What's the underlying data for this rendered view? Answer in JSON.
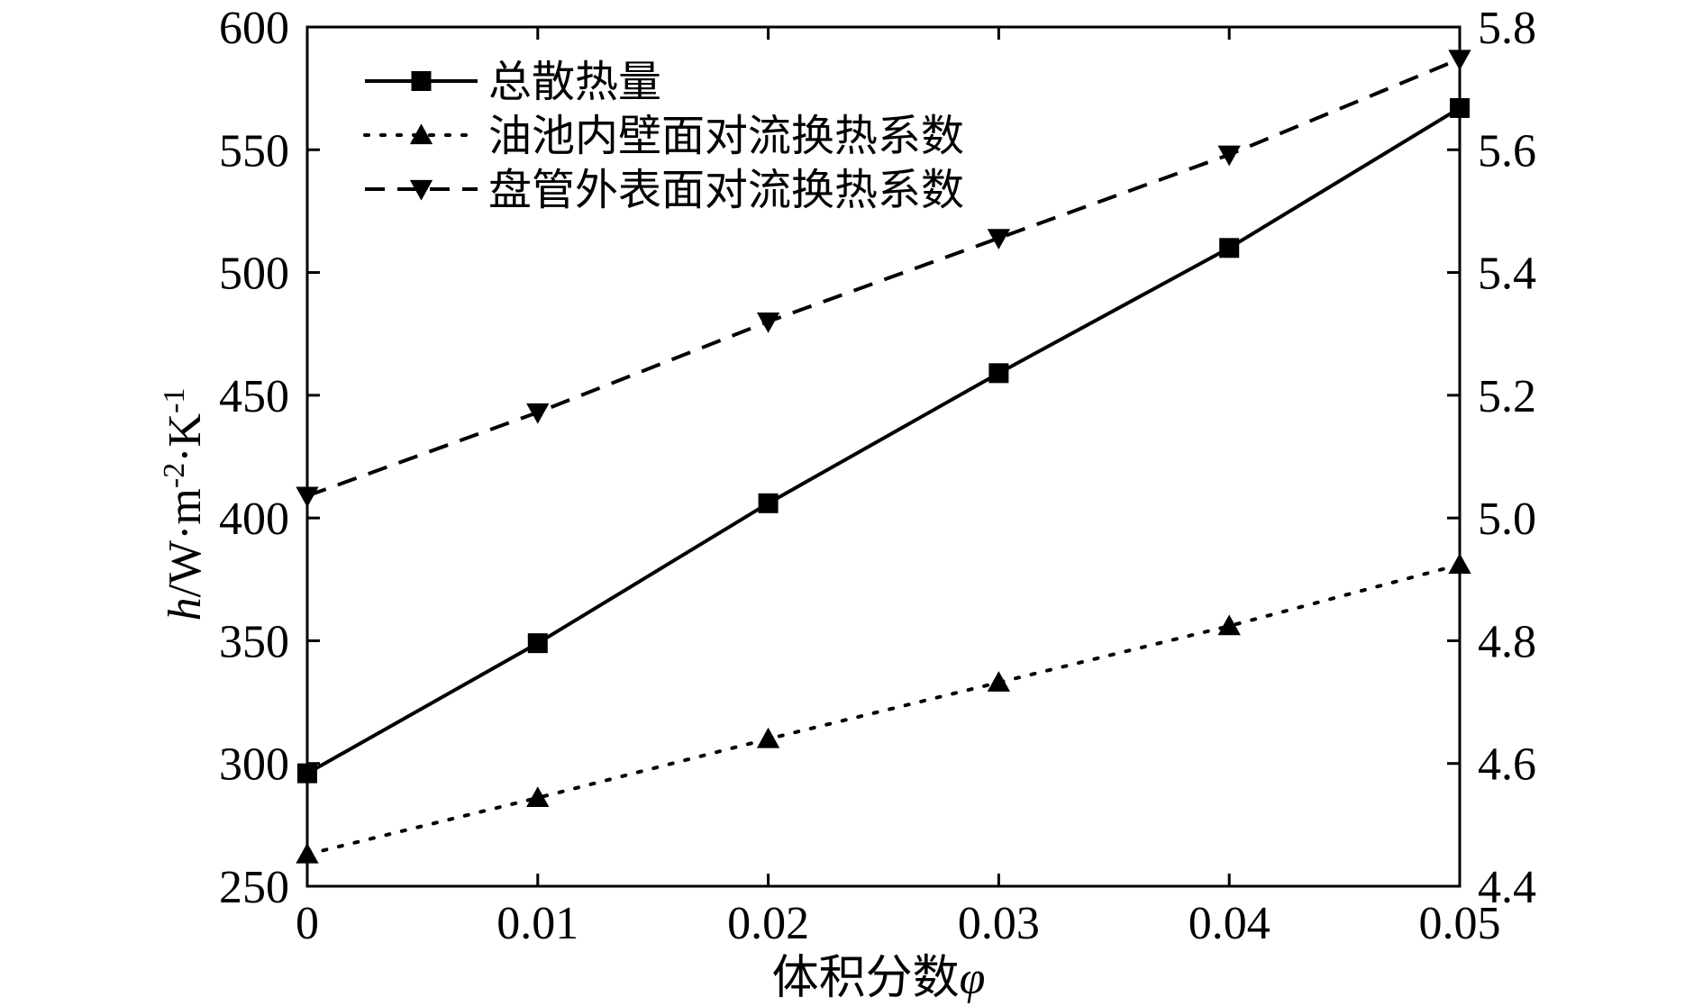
{
  "chart_data": {
    "type": "line",
    "x": [
      0,
      0.01,
      0.02,
      0.03,
      0.04,
      0.05
    ],
    "x_tick_labels": [
      "0",
      "0.01",
      "0.02",
      "0.03",
      "0.04",
      "0.05"
    ],
    "xlim": [
      0,
      0.05
    ],
    "xlabel": "体积分数",
    "xlabel_symbol": "φ",
    "ylabel": {
      "symbol": "h",
      "units": "/W·m",
      "exp1": "-2",
      "dot": "·K",
      "exp2": "-1"
    },
    "ylim_left": [
      250,
      600
    ],
    "y_left_ticks": [
      "250",
      "300",
      "350",
      "400",
      "450",
      "500",
      "550",
      "600"
    ],
    "ylim_right": [
      4.4,
      5.8
    ],
    "y_right_ticks": [
      "4.4",
      "4.6",
      "4.8",
      "5.0",
      "5.2",
      "5.4",
      "5.6",
      "5.8"
    ],
    "legend_position": "top-left",
    "grid": false,
    "series": [
      {
        "name": "总散热量",
        "marker": "square",
        "line": "solid",
        "axis": "left",
        "color": "#000000",
        "values": [
          296,
          349,
          406,
          459,
          510,
          567
        ]
      },
      {
        "name": "油池内壁面对流换热系数",
        "marker": "triangle-up",
        "line": "dotted",
        "axis": "left",
        "color": "#000000",
        "values": [
          263,
          286,
          310,
          333,
          356,
          381
        ]
      },
      {
        "name": "盘管外表面对流换热系数",
        "marker": "triangle-down",
        "line": "dashed",
        "axis": "left",
        "color": "#000000",
        "values": [
          409,
          443,
          480,
          514,
          548,
          587
        ]
      }
    ]
  }
}
